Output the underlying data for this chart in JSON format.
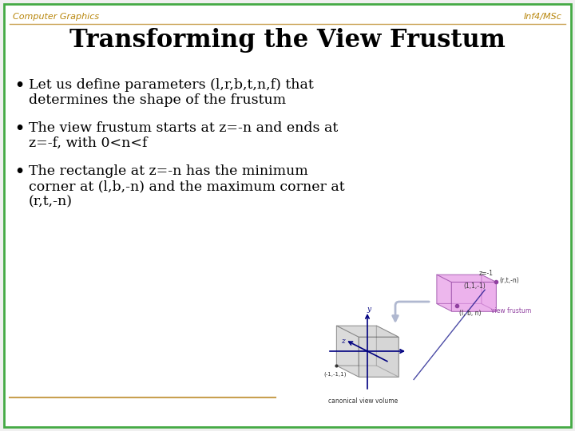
{
  "bg_color": "#f0f0f0",
  "inner_bg_color": "#ffffff",
  "border_color": "#44aa44",
  "header_left": "Computer Graphics",
  "header_right": "Inf4/MSc",
  "header_color": "#b8860b",
  "header_line_color": "#c8a050",
  "title": "Transforming the View Frustum",
  "title_color": "#000000",
  "bullet1_line1": "Let us define parameters (l,r,b,t,n,f) that",
  "bullet1_line2": "determines the shape of the frustum",
  "bullet2_line1": "The view frustum starts at z=-n and ends at",
  "bullet2_line2": "z=-f, with 0<n<f",
  "bullet3_line1": "The rectangle at z=-n has the minimum",
  "bullet3_line2": "corner at (l,b,-n) and the maximum corner at",
  "bullet3_line3": "(r,t,-n)",
  "footer_line_color": "#c8a050",
  "body_text_color": "#000000",
  "font_size_header": 8,
  "font_size_title": 22,
  "font_size_body": 12.5,
  "cube_color": "#c8c8c8",
  "cube_edge": "#505050",
  "frustum_color": "#e8a0e8",
  "frustum_edge": "#9040a0",
  "axis_color": "#000080",
  "label_color": "#333333",
  "frustum_label_color": "#9040a0",
  "arrow_color": "#b0b8d0"
}
